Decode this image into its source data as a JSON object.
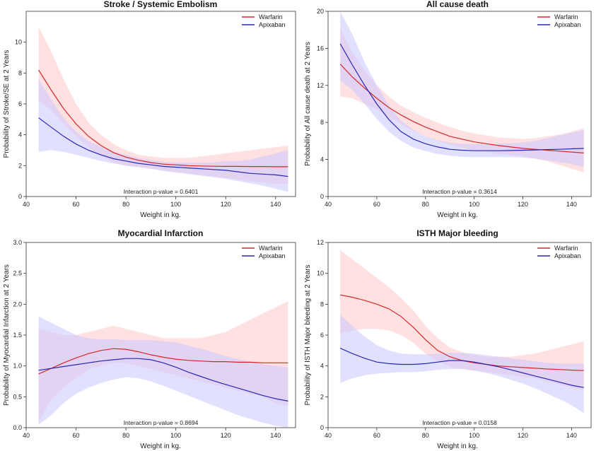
{
  "xlabel": "Weight in kg.",
  "legend_labels": [
    "Warfarin",
    "Apixaban"
  ],
  "colors": {
    "Warfarin": "#d62728",
    "Apixaban": "#2828b4",
    "Warfarin_band": "#ffc8c8",
    "Apixaban_band": "#c8c8ff"
  },
  "chart_data": [
    {
      "type": "line",
      "title": "Stroke / Systemic Embolism",
      "xlabel": "Weight in kg.",
      "ylabel": "Probability of Stroke/SE at 2 Years",
      "xlim": [
        40,
        148
      ],
      "ylim": [
        0,
        12
      ],
      "xticks": [
        40,
        60,
        80,
        100,
        120,
        140
      ],
      "yticks": [
        0,
        2,
        4,
        6,
        8,
        10
      ],
      "legend_position": "top-right",
      "annotation": "Interaction p-value = 0.6401",
      "x": [
        45,
        50,
        55,
        60,
        65,
        70,
        75,
        80,
        85,
        90,
        95,
        100,
        105,
        110,
        115,
        120,
        125,
        130,
        135,
        140,
        145
      ],
      "series": [
        {
          "name": "Warfarin",
          "values": [
            8.2,
            6.9,
            5.7,
            4.7,
            3.9,
            3.3,
            2.85,
            2.55,
            2.35,
            2.2,
            2.1,
            2.05,
            2.0,
            1.98,
            1.96,
            1.95,
            1.95,
            1.94,
            1.94,
            1.93,
            1.93
          ],
          "lower": [
            6.2,
            5.6,
            4.7,
            3.9,
            3.2,
            2.6,
            2.2,
            2.0,
            1.9,
            1.8,
            1.7,
            1.6,
            1.5,
            1.4,
            1.3,
            1.2,
            1.1,
            1.0,
            0.9,
            0.8,
            0.8
          ],
          "upper": [
            11.0,
            9.4,
            7.6,
            6.0,
            4.8,
            4.0,
            3.4,
            3.0,
            2.7,
            2.6,
            2.5,
            2.5,
            2.5,
            2.6,
            2.7,
            2.8,
            2.9,
            3.0,
            3.1,
            3.2,
            3.3
          ]
        },
        {
          "name": "Apixaban",
          "values": [
            5.1,
            4.5,
            3.9,
            3.4,
            3.0,
            2.7,
            2.45,
            2.3,
            2.15,
            2.05,
            1.95,
            1.9,
            1.85,
            1.8,
            1.75,
            1.7,
            1.6,
            1.5,
            1.45,
            1.4,
            1.3
          ],
          "lower": [
            2.9,
            3.0,
            2.9,
            2.7,
            2.5,
            2.3,
            2.15,
            2.0,
            1.9,
            1.8,
            1.65,
            1.55,
            1.45,
            1.35,
            1.25,
            1.15,
            1.0,
            0.85,
            0.7,
            0.5,
            0.3
          ],
          "upper": [
            7.6,
            6.3,
            5.1,
            4.2,
            3.6,
            3.2,
            2.9,
            2.7,
            2.5,
            2.35,
            2.25,
            2.2,
            2.2,
            2.2,
            2.2,
            2.3,
            2.3,
            2.4,
            2.6,
            2.8,
            3.0
          ]
        }
      ]
    },
    {
      "type": "line",
      "title": "All cause death",
      "xlabel": "Weight in kg.",
      "ylabel": "Probability of All cause death at 2 Years",
      "xlim": [
        40,
        148
      ],
      "ylim": [
        0,
        20
      ],
      "xticks": [
        40,
        60,
        80,
        100,
        120,
        140
      ],
      "yticks": [
        0,
        4,
        8,
        12,
        16,
        20
      ],
      "legend_position": "top-right",
      "annotation": "Interaction p-value = 0.3614",
      "x": [
        45,
        50,
        55,
        60,
        65,
        70,
        75,
        80,
        85,
        90,
        95,
        100,
        105,
        110,
        115,
        120,
        125,
        130,
        135,
        140,
        145
      ],
      "series": [
        {
          "name": "Warfarin",
          "values": [
            14.3,
            12.9,
            11.7,
            10.6,
            9.6,
            8.8,
            8.1,
            7.5,
            7.0,
            6.5,
            6.2,
            5.9,
            5.7,
            5.5,
            5.35,
            5.2,
            5.1,
            5.0,
            4.9,
            4.8,
            4.7
          ],
          "lower": [
            10.8,
            10.6,
            10.0,
            9.4,
            8.6,
            7.8,
            7.1,
            6.5,
            6.0,
            5.6,
            5.3,
            5.0,
            4.8,
            4.6,
            4.5,
            4.3,
            4.1,
            3.8,
            3.4,
            3.0,
            2.6
          ],
          "upper": [
            18.2,
            15.5,
            13.6,
            12.0,
            10.8,
            9.8,
            9.1,
            8.5,
            8.0,
            7.5,
            7.1,
            6.8,
            6.6,
            6.4,
            6.3,
            6.2,
            6.3,
            6.5,
            6.7,
            7.0,
            7.4
          ]
        },
        {
          "name": "Apixaban",
          "values": [
            16.5,
            14.2,
            12.0,
            10.0,
            8.3,
            7.0,
            6.2,
            5.7,
            5.35,
            5.1,
            5.0,
            4.95,
            4.95,
            4.95,
            4.97,
            5.0,
            5.03,
            5.07,
            5.1,
            5.15,
            5.2
          ],
          "lower": [
            12.5,
            11.5,
            10.0,
            8.4,
            7.0,
            6.0,
            5.3,
            4.9,
            4.6,
            4.4,
            4.3,
            4.25,
            4.25,
            4.25,
            4.25,
            4.2,
            4.1,
            3.9,
            3.7,
            3.5,
            3.2
          ],
          "upper": [
            20.0,
            17.5,
            14.5,
            12.0,
            9.8,
            8.2,
            7.2,
            6.5,
            6.1,
            5.8,
            5.7,
            5.65,
            5.65,
            5.7,
            5.75,
            5.85,
            6.0,
            6.3,
            6.6,
            6.9,
            7.2
          ]
        }
      ]
    },
    {
      "type": "line",
      "title": "Myocardial Infarction",
      "xlabel": "Weight in kg.",
      "ylabel": "Probability of Myocardial Infarction at 2 Years",
      "xlim": [
        40,
        148
      ],
      "ylim": [
        0,
        3.0
      ],
      "xticks": [
        40,
        60,
        80,
        100,
        120,
        140
      ],
      "yticks": [
        0.0,
        0.5,
        1.0,
        1.5,
        2.0,
        2.5,
        3.0
      ],
      "legend_position": "top-right",
      "annotation": "Interaction p-value = 0.8694",
      "x": [
        45,
        50,
        55,
        60,
        65,
        70,
        75,
        80,
        85,
        90,
        95,
        100,
        105,
        110,
        115,
        120,
        125,
        130,
        135,
        140,
        145
      ],
      "series": [
        {
          "name": "Warfarin",
          "values": [
            0.87,
            0.96,
            1.05,
            1.13,
            1.2,
            1.25,
            1.28,
            1.27,
            1.23,
            1.18,
            1.14,
            1.11,
            1.09,
            1.08,
            1.07,
            1.07,
            1.06,
            1.06,
            1.05,
            1.05,
            1.05
          ],
          "lower": [
            0.1,
            0.45,
            0.65,
            0.8,
            0.95,
            1.0,
            1.05,
            1.05,
            1.0,
            0.95,
            0.9,
            0.85,
            0.8,
            0.75,
            0.7,
            0.65,
            0.6,
            0.55,
            0.5,
            0.4,
            0.35
          ],
          "upper": [
            1.6,
            1.55,
            1.5,
            1.5,
            1.55,
            1.6,
            1.65,
            1.6,
            1.55,
            1.5,
            1.45,
            1.45,
            1.45,
            1.45,
            1.5,
            1.55,
            1.65,
            1.75,
            1.85,
            1.95,
            2.05
          ]
        },
        {
          "name": "Apixaban",
          "values": [
            0.93,
            0.96,
            0.99,
            1.02,
            1.05,
            1.08,
            1.1,
            1.12,
            1.12,
            1.1,
            1.05,
            0.98,
            0.9,
            0.83,
            0.76,
            0.7,
            0.64,
            0.58,
            0.52,
            0.47,
            0.43
          ],
          "lower": [
            0.05,
            0.2,
            0.4,
            0.55,
            0.65,
            0.72,
            0.78,
            0.82,
            0.8,
            0.75,
            0.68,
            0.6,
            0.52,
            0.44,
            0.36,
            0.28,
            0.2,
            0.14,
            0.08,
            0.03,
            0.0
          ],
          "upper": [
            1.8,
            1.7,
            1.6,
            1.5,
            1.45,
            1.43,
            1.43,
            1.42,
            1.42,
            1.42,
            1.4,
            1.38,
            1.33,
            1.28,
            1.22,
            1.16,
            1.11,
            1.07,
            1.03,
            1.0,
            0.98
          ]
        }
      ]
    },
    {
      "type": "line",
      "title": "ISTH Major bleeding",
      "xlabel": "Weight in kg.",
      "ylabel": "Probability of ISTH Major bleeding at 2 Years",
      "xlim": [
        40,
        148
      ],
      "ylim": [
        0,
        12
      ],
      "xticks": [
        40,
        60,
        80,
        100,
        120,
        140
      ],
      "yticks": [
        0,
        2,
        4,
        6,
        8,
        10,
        12
      ],
      "legend_position": "top-right",
      "annotation": "Interaction p-value = 0.0158",
      "x": [
        45,
        50,
        55,
        60,
        65,
        70,
        75,
        80,
        85,
        90,
        95,
        100,
        105,
        110,
        115,
        120,
        125,
        130,
        135,
        140,
        145
      ],
      "series": [
        {
          "name": "Warfarin",
          "values": [
            8.6,
            8.45,
            8.25,
            8.0,
            7.7,
            7.2,
            6.5,
            5.7,
            5.0,
            4.6,
            4.35,
            4.2,
            4.1,
            4.0,
            3.95,
            3.9,
            3.85,
            3.8,
            3.77,
            3.73,
            3.7
          ],
          "lower": [
            6.1,
            6.3,
            6.4,
            6.4,
            6.3,
            6.0,
            5.5,
            4.8,
            4.3,
            3.95,
            3.8,
            3.7,
            3.6,
            3.5,
            3.4,
            3.3,
            3.2,
            3.0,
            2.8,
            2.6,
            2.4
          ],
          "upper": [
            11.5,
            10.9,
            10.3,
            9.7,
            9.1,
            8.4,
            7.6,
            6.6,
            5.8,
            5.2,
            4.9,
            4.7,
            4.6,
            4.6,
            4.6,
            4.7,
            4.8,
            5.0,
            5.2,
            5.4,
            5.6
          ]
        },
        {
          "name": "Apixaban",
          "values": [
            5.15,
            4.8,
            4.5,
            4.25,
            4.15,
            4.1,
            4.1,
            4.15,
            4.25,
            4.35,
            4.35,
            4.25,
            4.1,
            3.95,
            3.75,
            3.55,
            3.35,
            3.15,
            2.95,
            2.75,
            2.6
          ],
          "lower": [
            2.9,
            3.2,
            3.4,
            3.5,
            3.55,
            3.6,
            3.6,
            3.65,
            3.75,
            3.8,
            3.8,
            3.7,
            3.55,
            3.35,
            3.1,
            2.85,
            2.55,
            2.2,
            1.85,
            1.45,
            0.95
          ],
          "upper": [
            7.3,
            6.6,
            5.9,
            5.35,
            5.0,
            4.8,
            4.75,
            4.75,
            4.8,
            4.85,
            4.85,
            4.8,
            4.7,
            4.6,
            4.5,
            4.4,
            4.3,
            4.2,
            4.15,
            4.15,
            4.15
          ]
        }
      ]
    }
  ]
}
